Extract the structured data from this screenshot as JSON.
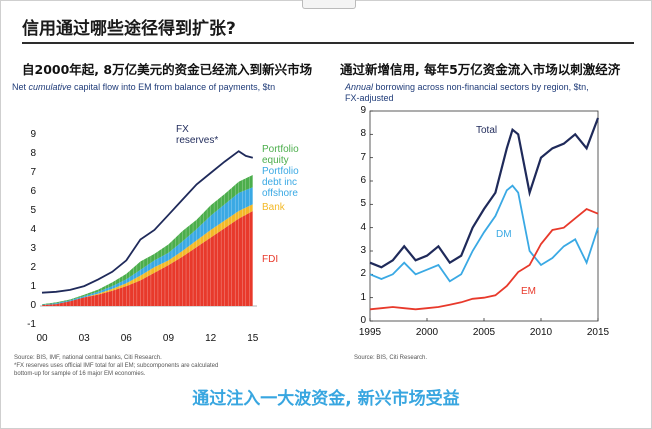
{
  "page": {
    "title": "信用通过哪些途径得到扩张?",
    "subtitle_left": "自2000年起, 8万亿美元的资金已经流入到新兴市场",
    "subtitle_right": "通过新增信用, 每年5万亿资金流入市场以刺激经济",
    "banner": "通过注入一大波资金, 新兴市场受益",
    "top_tab": ""
  },
  "left": {
    "title": "Net cumulative capital flow into EM from balance of payments, $tn",
    "title_pre": "Net ",
    "title_em": "cumulative",
    "title_post": " capital flow into EM from balance of payments, $tn",
    "source1": "Source: BIS, IMF, national central banks, Citi Research.",
    "source2": "*FX reserves uses official IMF total for all EM; subcomponents are calculated",
    "source3": "bottom-up for sample of  16 major EM economies."
  },
  "right": {
    "title": "Annual borrowing across non-financial sectors by region, $tn, FX-adjusted",
    "title_em": "Annual",
    "title_post1": " borrowing across non-financial sectors by region, $tn,",
    "title_post2": "FX-adjusted",
    "source1": "Source: BIS, Citi Research."
  },
  "chart_data": [
    {
      "type": "area",
      "title": "Net cumulative capital flow into EM from balance of payments, $tn",
      "ylim": [
        -1,
        9
      ],
      "yticks": [
        "-1",
        "0",
        "1",
        "2",
        "3",
        "4",
        "5",
        "6",
        "7",
        "8",
        "9"
      ],
      "xtick_labels": [
        "00",
        "03",
        "06",
        "09",
        "12",
        "15"
      ],
      "xtick_years": [
        2000,
        2003,
        2006,
        2009,
        2012,
        2015
      ],
      "stacked_series": [
        {
          "name": "FDI",
          "label": "FDI",
          "color": "#e8392b",
          "x": [
            2000,
            2001,
            2002,
            2003,
            2004,
            2005,
            2006,
            2007,
            2008,
            2009,
            2010,
            2011,
            2012,
            2013,
            2014,
            2015
          ],
          "values": [
            0.05,
            0.15,
            0.3,
            0.45,
            0.6,
            0.8,
            1.05,
            1.35,
            1.75,
            2.15,
            2.6,
            3.1,
            3.6,
            4.1,
            4.6,
            5.0
          ]
        },
        {
          "name": "Bank",
          "label": "Bank",
          "color": "#f3b928",
          "x": [
            2000,
            2001,
            2002,
            2003,
            2004,
            2005,
            2006,
            2007,
            2008,
            2009,
            2010,
            2011,
            2012,
            2013,
            2014,
            2015
          ],
          "values": [
            0.0,
            -0.05,
            -0.05,
            0.0,
            0.05,
            0.1,
            0.15,
            0.25,
            0.3,
            0.25,
            0.3,
            0.35,
            0.4,
            0.4,
            0.4,
            0.35
          ]
        },
        {
          "name": "Portfolio debt inc offshore",
          "label": "Portfolio\ndebt inc\noffshore",
          "color": "#3aa9e4",
          "x": [
            2000,
            2001,
            2002,
            2003,
            2004,
            2005,
            2006,
            2007,
            2008,
            2009,
            2010,
            2011,
            2012,
            2013,
            2014,
            2015
          ],
          "values": [
            0.02,
            0.05,
            0.05,
            0.07,
            0.1,
            0.15,
            0.2,
            0.3,
            0.35,
            0.4,
            0.5,
            0.6,
            0.75,
            0.85,
            0.95,
            0.9
          ]
        },
        {
          "name": "Portfolio equity",
          "label": "Portfolio\nequity",
          "color": "#4cae4c",
          "x": [
            2000,
            2001,
            2002,
            2003,
            2004,
            2005,
            2006,
            2007,
            2008,
            2009,
            2010,
            2011,
            2012,
            2013,
            2014,
            2015
          ],
          "values": [
            0.03,
            0.05,
            0.05,
            0.08,
            0.12,
            0.2,
            0.3,
            0.45,
            0.35,
            0.45,
            0.55,
            0.5,
            0.55,
            0.55,
            0.6,
            0.65
          ]
        }
      ],
      "line_series": [
        {
          "name": "FX reserves*",
          "label": "FX\nreserves*",
          "color": "#1f2a5a",
          "x": [
            2000,
            2001,
            2002,
            2003,
            2004,
            2005,
            2006,
            2007,
            2008,
            2009,
            2010,
            2011,
            2012,
            2013,
            2014,
            2014.5,
            2015
          ],
          "values": [
            0.7,
            0.75,
            0.85,
            1.05,
            1.4,
            1.8,
            2.4,
            3.5,
            4.0,
            4.8,
            5.6,
            6.4,
            7.0,
            7.6,
            8.15,
            7.9,
            7.8
          ]
        }
      ]
    },
    {
      "type": "line",
      "title": "Annual borrowing across non-financial sectors by region, $tn, FX-adjusted",
      "ylim": [
        0,
        9
      ],
      "yticks": [
        "0",
        "1",
        "2",
        "3",
        "4",
        "5",
        "6",
        "7",
        "8",
        "9"
      ],
      "xtick_labels": [
        "1995",
        "2000",
        "2005",
        "2010",
        "2015"
      ],
      "xtick_years": [
        1995,
        2000,
        2005,
        2010,
        2015
      ],
      "series": [
        {
          "name": "Total",
          "label": "Total",
          "color": "#1f2a5a",
          "x": [
            1995,
            1996,
            1997,
            1998,
            1999,
            2000,
            2001,
            2002,
            2003,
            2004,
            2005,
            2006,
            2007,
            2007.5,
            2008,
            2009,
            2010,
            2011,
            2012,
            2013,
            2014,
            2015
          ],
          "values": [
            2.5,
            2.3,
            2.6,
            3.2,
            2.6,
            2.8,
            3.2,
            2.5,
            2.8,
            4.0,
            4.8,
            5.5,
            7.4,
            8.2,
            8.0,
            5.5,
            7.0,
            7.4,
            7.6,
            8.0,
            7.4,
            8.7
          ]
        },
        {
          "name": "DM",
          "label": "DM",
          "color": "#3aa9e4",
          "x": [
            1995,
            1996,
            1997,
            1998,
            1999,
            2000,
            2001,
            2002,
            2003,
            2004,
            2005,
            2006,
            2007,
            2007.5,
            2008,
            2009,
            2010,
            2011,
            2012,
            2013,
            2014,
            2015
          ],
          "values": [
            2.0,
            1.8,
            2.0,
            2.5,
            2.0,
            2.2,
            2.4,
            1.7,
            2.0,
            3.0,
            3.8,
            4.5,
            5.6,
            5.8,
            5.5,
            3.0,
            2.4,
            2.7,
            3.2,
            3.5,
            2.5,
            4.0
          ]
        },
        {
          "name": "EM",
          "label": "EM",
          "color": "#e8392b",
          "x": [
            1995,
            1996,
            1997,
            1998,
            1999,
            2000,
            2001,
            2002,
            2003,
            2004,
            2005,
            2006,
            2007,
            2008,
            2009,
            2010,
            2011,
            2012,
            2013,
            2014,
            2015
          ],
          "values": [
            0.5,
            0.55,
            0.6,
            0.55,
            0.5,
            0.55,
            0.6,
            0.7,
            0.8,
            0.95,
            1.0,
            1.1,
            1.5,
            2.1,
            2.4,
            3.3,
            3.9,
            4.0,
            4.4,
            4.8,
            4.6
          ]
        }
      ]
    }
  ],
  "colors": {
    "accent_blue": "#38a6e0",
    "title_navy": "#1f3b78"
  }
}
